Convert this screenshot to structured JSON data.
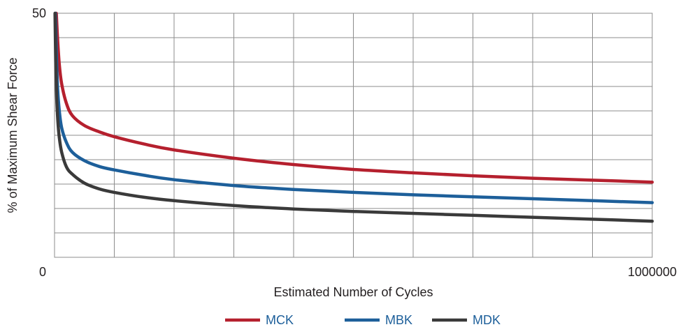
{
  "chart_data": {
    "type": "line",
    "title": "",
    "xlabel": "Estimated Number of Cycles",
    "ylabel": "% of Maximum Shear Force",
    "xlim": [
      0,
      1000000
    ],
    "ylim": [
      0,
      50
    ],
    "x_tick_labels": [
      "0",
      "1000000"
    ],
    "y_tick_labels": [
      "50"
    ],
    "grid": true,
    "legend_placement": "bottom-center",
    "series": [
      {
        "name": "MCK",
        "color": "#b5202e",
        "x": [
          3000,
          5000,
          8000,
          12000,
          20000,
          30000,
          50000,
          75000,
          100000,
          150000,
          200000,
          300000,
          400000,
          500000,
          600000,
          700000,
          800000,
          900000,
          1000000
        ],
        "y": [
          50,
          45,
          39.5,
          35.5,
          31.5,
          29,
          27,
          25.7,
          24.7,
          23.2,
          22,
          20.3,
          19,
          18,
          17.3,
          16.7,
          16.2,
          15.8,
          15.4
        ]
      },
      {
        "name": "MBK",
        "color": "#1d5f9a",
        "x": [
          1500,
          3000,
          5000,
          8000,
          12000,
          20000,
          30000,
          50000,
          75000,
          100000,
          150000,
          200000,
          300000,
          400000,
          500000,
          600000,
          700000,
          800000,
          900000,
          1000000
        ],
        "y": [
          50,
          42,
          35,
          30,
          26.5,
          23.5,
          21.5,
          19.8,
          18.6,
          17.9,
          16.8,
          15.9,
          14.7,
          13.9,
          13.3,
          12.8,
          12.4,
          12.0,
          11.6,
          11.2
        ]
      },
      {
        "name": "MDK",
        "color": "#3a3a3a",
        "x": [
          800,
          2000,
          3500,
          5500,
          8000,
          12000,
          20000,
          30000,
          50000,
          75000,
          100000,
          150000,
          200000,
          300000,
          400000,
          500000,
          600000,
          700000,
          800000,
          900000,
          1000000
        ],
        "y": [
          50,
          40,
          33,
          28,
          24.5,
          21.5,
          18.5,
          17,
          15.2,
          14,
          13.3,
          12.3,
          11.6,
          10.6,
          9.9,
          9.4,
          9.0,
          8.6,
          8.2,
          7.8,
          7.4
        ]
      }
    ]
  }
}
